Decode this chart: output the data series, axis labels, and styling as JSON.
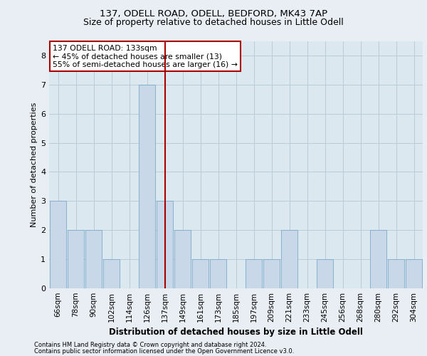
{
  "title1": "137, ODELL ROAD, ODELL, BEDFORD, MK43 7AP",
  "title2": "Size of property relative to detached houses in Little Odell",
  "xlabel": "Distribution of detached houses by size in Little Odell",
  "ylabel": "Number of detached properties",
  "categories": [
    "66sqm",
    "78sqm",
    "90sqm",
    "102sqm",
    "114sqm",
    "126sqm",
    "137sqm",
    "149sqm",
    "161sqm",
    "173sqm",
    "185sqm",
    "197sqm",
    "209sqm",
    "221sqm",
    "233sqm",
    "245sqm",
    "256sqm",
    "268sqm",
    "280sqm",
    "292sqm",
    "304sqm"
  ],
  "values": [
    3,
    2,
    2,
    1,
    0,
    7,
    3,
    2,
    1,
    1,
    0,
    1,
    1,
    2,
    0,
    1,
    0,
    0,
    2,
    1,
    1
  ],
  "highlight_index": 6,
  "bar_color": "#c8d8e8",
  "bar_edge_color": "#7aaac8",
  "highlight_line_color": "#aa0000",
  "annotation_line1": "137 ODELL ROAD: 133sqm",
  "annotation_line2": "← 45% of detached houses are smaller (13)",
  "annotation_line3": "55% of semi-detached houses are larger (16) →",
  "annotation_box_color": "#ffffff",
  "annotation_box_edge_color": "#aa0000",
  "ylim": [
    0,
    8.5
  ],
  "yticks": [
    0,
    1,
    2,
    3,
    4,
    5,
    6,
    7,
    8
  ],
  "footer_line1": "Contains HM Land Registry data © Crown copyright and database right 2024.",
  "footer_line2": "Contains public sector information licensed under the Open Government Licence v3.0.",
  "bg_color": "#e8eef4",
  "plot_bg_color": "#dce8f0",
  "grid_color": "#b8ccd8",
  "title_fontsize": 9.5,
  "subtitle_fontsize": 9.0
}
